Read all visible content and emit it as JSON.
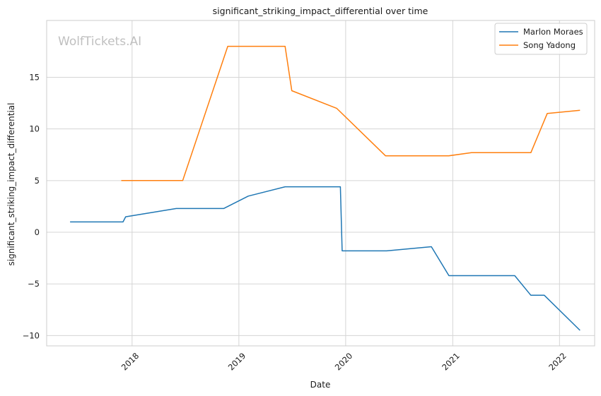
{
  "chart_data": {
    "type": "line",
    "title": "significant_striking_impact_differential over time",
    "xlabel": "Date",
    "ylabel": "significant_striking_impact_differential",
    "watermark": "WolfTickets.AI",
    "xlim": [
      "2017-03-15",
      "2022-05-01"
    ],
    "ylim": [
      -11,
      20.5
    ],
    "x_ticks": [
      {
        "date": "2018-01-01",
        "label": "2018"
      },
      {
        "date": "2019-01-01",
        "label": "2019"
      },
      {
        "date": "2020-01-01",
        "label": "2020"
      },
      {
        "date": "2021-01-01",
        "label": "2021"
      },
      {
        "date": "2022-01-01",
        "label": "2022"
      }
    ],
    "y_ticks": [
      {
        "value": -10,
        "label": "−10"
      },
      {
        "value": -5,
        "label": "−5"
      },
      {
        "value": 0,
        "label": "0"
      },
      {
        "value": 5,
        "label": "5"
      },
      {
        "value": 10,
        "label": "10"
      },
      {
        "value": 15,
        "label": "15"
      }
    ],
    "grid": true,
    "legend_position": "top-right",
    "series": [
      {
        "name": "Marlon Moraes",
        "color": "#1f77b4",
        "points": [
          {
            "x": "2017-06-03",
            "y": 1.0
          },
          {
            "x": "2017-12-01",
            "y": 1.0
          },
          {
            "x": "2017-12-10",
            "y": 1.5
          },
          {
            "x": "2018-06-01",
            "y": 2.3
          },
          {
            "x": "2018-11-10",
            "y": 2.3
          },
          {
            "x": "2019-02-02",
            "y": 3.5
          },
          {
            "x": "2019-06-08",
            "y": 4.4
          },
          {
            "x": "2019-12-14",
            "y": 4.4
          },
          {
            "x": "2019-12-20",
            "y": -1.8
          },
          {
            "x": "2020-05-20",
            "y": -1.8
          },
          {
            "x": "2020-10-20",
            "y": -1.4
          },
          {
            "x": "2020-12-19",
            "y": -4.2
          },
          {
            "x": "2021-08-01",
            "y": -4.2
          },
          {
            "x": "2021-09-25",
            "y": -6.1
          },
          {
            "x": "2021-11-10",
            "y": -6.1
          },
          {
            "x": "2022-03-12",
            "y": -9.5
          }
        ]
      },
      {
        "name": "Song Yadong",
        "color": "#ff7f0e",
        "points": [
          {
            "x": "2017-11-25",
            "y": 5.0
          },
          {
            "x": "2018-06-23",
            "y": 5.0
          },
          {
            "x": "2018-11-24",
            "y": 18.0
          },
          {
            "x": "2019-06-08",
            "y": 18.0
          },
          {
            "x": "2019-07-01",
            "y": 13.7
          },
          {
            "x": "2019-12-01",
            "y": 12.0
          },
          {
            "x": "2020-05-16",
            "y": 7.4
          },
          {
            "x": "2020-12-19",
            "y": 7.4
          },
          {
            "x": "2021-03-06",
            "y": 7.7
          },
          {
            "x": "2021-09-25",
            "y": 7.7
          },
          {
            "x": "2021-11-20",
            "y": 11.5
          },
          {
            "x": "2022-03-12",
            "y": 11.8
          }
        ]
      }
    ]
  }
}
